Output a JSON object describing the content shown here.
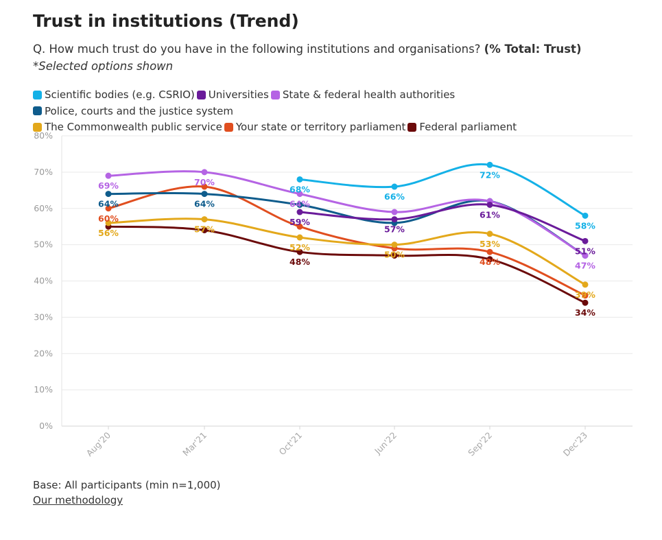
{
  "header": {
    "title": "Trust in institutions (Trend)",
    "question": "Q. How much trust do you have in the following institutions and organisations? ",
    "question_bold": "(% Total: Trust)",
    "note": "*Selected options shown"
  },
  "footer": {
    "base": "Base: All participants (min n=1,000)",
    "methodology": "Our methodology"
  },
  "chart_data": {
    "type": "line",
    "categories": [
      "Aug'20",
      "Mar'21",
      "Oct'21",
      "Jun'22",
      "Sep'22",
      "Dec'23"
    ],
    "ylim": [
      0,
      80
    ],
    "yticks": [
      "0%",
      "10%",
      "20%",
      "30%",
      "40%",
      "50%",
      "60%",
      "70%",
      "80%"
    ],
    "grid": true,
    "legend_position": "top",
    "series": [
      {
        "name": "Scientific bodies (e.g. CSRIO)",
        "color": "#14b1e7",
        "values": [
          null,
          null,
          68,
          66,
          72,
          58
        ],
        "labels": [
          null,
          null,
          "68%",
          "66%",
          "72%",
          "58%"
        ]
      },
      {
        "name": "Universities",
        "color": "#6a1b9a",
        "values": [
          null,
          null,
          59,
          57,
          61,
          51
        ],
        "labels": [
          null,
          null,
          "59%",
          "57%",
          "61%",
          "51%"
        ]
      },
      {
        "name": "State & federal health authorities",
        "color": "#b564e4",
        "values": [
          69,
          70,
          64,
          59,
          62,
          47
        ],
        "labels": [
          "69%",
          "70%",
          "64%",
          null,
          null,
          "47%"
        ]
      },
      {
        "name": "Police, courts and the justice system",
        "color": "#0f5c8c",
        "values": [
          64,
          64,
          61,
          56,
          62,
          47
        ],
        "labels": [
          "64%",
          "64%",
          null,
          null,
          null,
          null
        ]
      },
      {
        "name": "The Commonwealth public service",
        "color": "#e3a81b",
        "values": [
          56,
          57,
          52,
          50,
          53,
          39
        ],
        "labels": [
          "56%",
          "57%",
          "52%",
          "50%",
          "53%",
          "39%"
        ]
      },
      {
        "name": "Your state or territory parliament",
        "color": "#e04e1f",
        "values": [
          60,
          66,
          55,
          49,
          48,
          36
        ],
        "labels": [
          "60%",
          null,
          null,
          null,
          "48%",
          null
        ]
      },
      {
        "name": "Federal parliament",
        "color": "#6b0a0a",
        "values": [
          55,
          54,
          48,
          47,
          46,
          34
        ],
        "labels": [
          null,
          null,
          "48%",
          null,
          null,
          "34%"
        ]
      }
    ]
  }
}
